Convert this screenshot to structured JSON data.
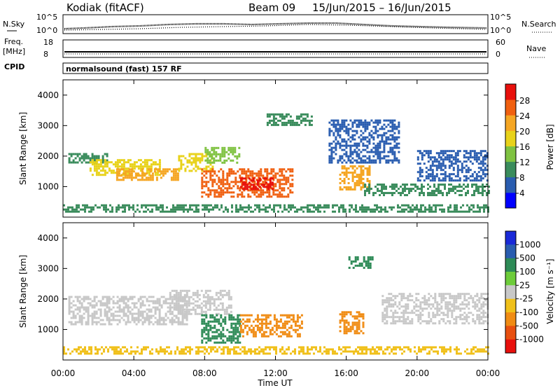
{
  "header": {
    "station": "Kodiak (fitACF)",
    "beam": "Beam 09",
    "date_range": "15/Jun/2015 – 16/Jun/2015"
  },
  "strips": {
    "nsky_label": "N.Sky",
    "nsky_ticks": [
      "10^5",
      "10^0"
    ],
    "nsearch_label": "N.Search",
    "nsearch_ticks": [
      "10^5",
      "10^0"
    ],
    "freq_label": "Freq.",
    "freq_unit": "[MHz]",
    "freq_ticks": [
      "18",
      "8"
    ],
    "nave_label": "Nave",
    "nave_ticks": [
      "60",
      "0"
    ],
    "cpid_label": "CPID",
    "cpid_text": "normalsound (fast) 157 RF"
  },
  "panels": {
    "ylabel": "Slant Range [km]",
    "xlabel": "Time UT",
    "x_ticks": [
      "00:00",
      "04:00",
      "08:00",
      "12:00",
      "16:00",
      "20:00",
      "00:00"
    ]
  },
  "power_colorbar": {
    "label": "Power [dB]",
    "ticks": [
      "28",
      "24",
      "20",
      "16",
      "12",
      "8",
      "4"
    ],
    "colors": [
      "#0000ff",
      "#2a5db0",
      "#3a8c5c",
      "#7fc241",
      "#e8d21a",
      "#f5a623",
      "#f06010",
      "#e8100c"
    ]
  },
  "velocity_colorbar": {
    "label": "Velocity [m s⁻¹]",
    "ticks": [
      "1000",
      "500",
      "100",
      "25",
      "-25",
      "-100",
      "-500",
      "-1000"
    ],
    "colors": [
      "#1a2ad8",
      "#2a5db0",
      "#2e8b57",
      "#6dcc3a",
      "#c8c8c8",
      "#f0c01a",
      "#f08c14",
      "#e85010",
      "#e8100c"
    ]
  },
  "chart_data": [
    {
      "type": "heatmap",
      "title": "Power",
      "ylabel": "Slant Range [km]",
      "xlabel": "Time UT",
      "x_range": [
        "00:00",
        "24:00"
      ],
      "ylim": [
        0,
        4500
      ],
      "y_ticks": [
        1000,
        2000,
        3000,
        4000
      ],
      "colorbar_range": [
        0,
        30
      ],
      "regions": [
        {
          "t_start": 0.3,
          "t_end": 2.5,
          "r_start": 1800,
          "r_end": 2100,
          "level": 10
        },
        {
          "t_start": 1.5,
          "t_end": 5.5,
          "r_start": 1400,
          "r_end": 1900,
          "level": 16
        },
        {
          "t_start": 3.0,
          "t_end": 6.5,
          "r_start": 1200,
          "r_end": 1600,
          "level": 22
        },
        {
          "t_start": 6.5,
          "t_end": 8.5,
          "r_start": 1500,
          "r_end": 2100,
          "level": 18
        },
        {
          "t_start": 8.0,
          "t_end": 10.0,
          "r_start": 1800,
          "r_end": 2300,
          "level": 12
        },
        {
          "t_start": 7.8,
          "t_end": 13.0,
          "r_start": 700,
          "r_end": 1600,
          "level": 24
        },
        {
          "t_start": 10.0,
          "t_end": 11.8,
          "r_start": 900,
          "r_end": 1300,
          "level": 28
        },
        {
          "t_start": 15.6,
          "t_end": 17.3,
          "r_start": 900,
          "r_end": 1700,
          "level": 20
        },
        {
          "t_start": 11.5,
          "t_end": 14.0,
          "r_start": 3000,
          "r_end": 3400,
          "level": 8
        },
        {
          "t_start": 15.0,
          "t_end": 19.0,
          "r_start": 1800,
          "r_end": 3200,
          "level": 6
        },
        {
          "t_start": 20.0,
          "t_end": 24.0,
          "r_start": 1200,
          "r_end": 2200,
          "level": 6
        },
        {
          "t_start": 17.0,
          "t_end": 24.0,
          "r_start": 750,
          "r_end": 1100,
          "level": 8
        },
        {
          "t_start": 0.0,
          "t_end": 24.0,
          "r_start": 180,
          "r_end": 420,
          "level": 8
        }
      ]
    },
    {
      "type": "heatmap",
      "title": "Velocity",
      "ylabel": "Slant Range [km]",
      "xlabel": "Time UT",
      "x_range": [
        "00:00",
        "24:00"
      ],
      "ylim": [
        0,
        4500
      ],
      "y_ticks": [
        1000,
        2000,
        3000,
        4000
      ],
      "colorbar_range": [
        -1000,
        1000
      ],
      "regions": [
        {
          "t_start": 0.3,
          "t_end": 7.0,
          "r_start": 1200,
          "r_end": 2100,
          "level": 0
        },
        {
          "t_start": 6.0,
          "t_end": 9.5,
          "r_start": 1500,
          "r_end": 2300,
          "level": 0
        },
        {
          "t_start": 7.8,
          "t_end": 10.0,
          "r_start": 600,
          "r_end": 1500,
          "level": 150
        },
        {
          "t_start": 10.0,
          "t_end": 13.5,
          "r_start": 800,
          "r_end": 1500,
          "level": -150
        },
        {
          "t_start": 15.6,
          "t_end": 17.0,
          "r_start": 900,
          "r_end": 1600,
          "level": -300
        },
        {
          "t_start": 16.0,
          "t_end": 17.5,
          "r_start": 3000,
          "r_end": 3400,
          "level": 150
        },
        {
          "t_start": 18.0,
          "t_end": 24.0,
          "r_start": 1200,
          "r_end": 2200,
          "level": 0
        },
        {
          "t_start": 0.0,
          "t_end": 24.0,
          "r_start": 180,
          "r_end": 450,
          "level": -50
        }
      ]
    }
  ]
}
